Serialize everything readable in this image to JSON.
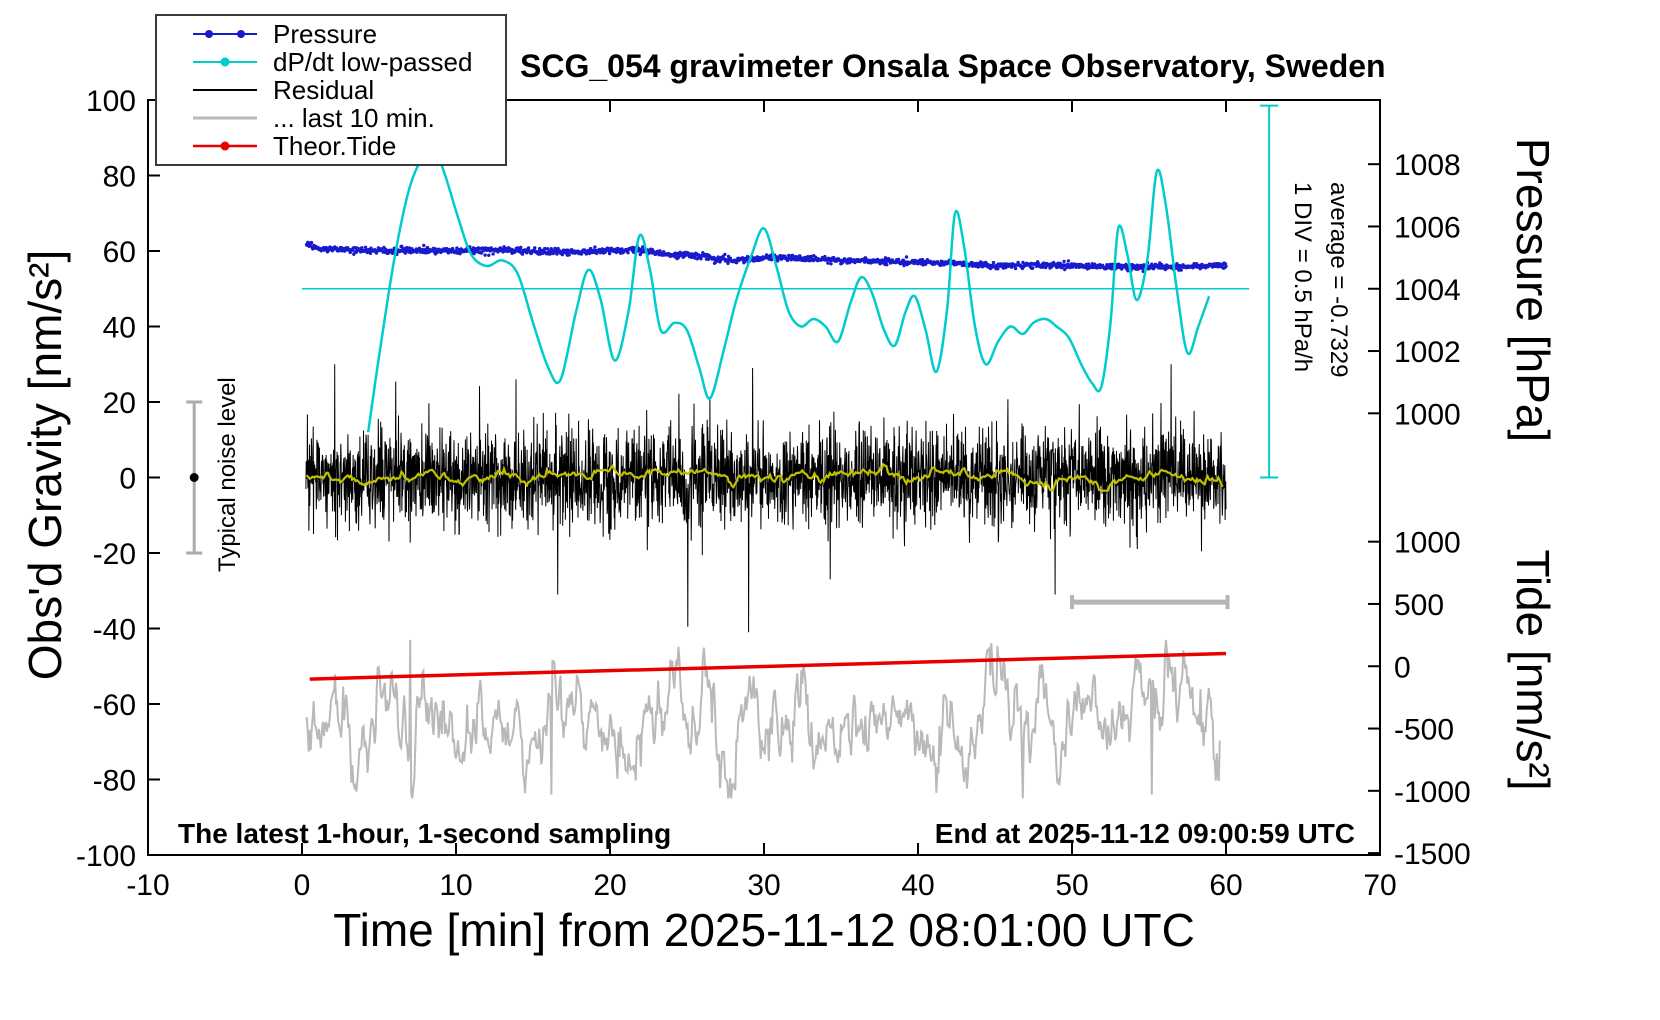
{
  "chart_data": {
    "type": "line",
    "title": "SCG_054 gravimeter Onsala Space Observatory, Sweden",
    "xlabel": "Time [min] from 2025-11-12 08:01:00 UTC",
    "ylabel": "Obs'd Gravity [nm/s²]",
    "xlim": [
      -10,
      70
    ],
    "ylim": [
      -100,
      100
    ],
    "x_ticks": [
      -10,
      0,
      10,
      20,
      30,
      40,
      50,
      60,
      70
    ],
    "y_ticks": [
      -100,
      -80,
      -60,
      -40,
      -20,
      0,
      20,
      40,
      60,
      80,
      100
    ],
    "grid": false,
    "legend_position": "top-left",
    "legend": [
      {
        "label": "Pressure",
        "color": "#1a1acd",
        "marker": "dots",
        "line_width": 2
      },
      {
        "label": "dP/dt low-passed",
        "color": "#00cccc",
        "marker": "dot",
        "line_width": 2
      },
      {
        "label": "Residual",
        "color": "#000000",
        "marker": "none",
        "line_width": 2
      },
      {
        "label": "... last 10 min.",
        "color": "#b9b9b9",
        "marker": "none",
        "line_width": 3
      },
      {
        "label": "Theor.Tide",
        "color": "#e80000",
        "marker": "dot",
        "line_width": 2.5
      }
    ],
    "pressure_axis": {
      "label": "Pressure [hPa]",
      "ticks": [
        1008,
        1006,
        1004,
        1002,
        1000
      ],
      "anchor_hpa": 1004,
      "anchor_gravity": 50,
      "gravity_units_per_hpa": 8.25
    },
    "tide_axis": {
      "label": "Tide [nm/s²]",
      "ticks": [
        1000,
        500,
        0,
        -500,
        -1000,
        -1500
      ],
      "anchor_tide": 0,
      "anchor_gravity": -50,
      "gravity_units_per_tide_unit": 0.033
    },
    "series": {
      "pressure_hpa": {
        "name": "Pressure",
        "color": "#1a1acd",
        "style": "dots",
        "x_range": [
          0.3,
          60
        ],
        "samples": 1500,
        "noise_hpa": 0.05,
        "keypoints": [
          [
            0.3,
            1005.45
          ],
          [
            1,
            1005.33
          ],
          [
            2,
            1005.28
          ],
          [
            4,
            1005.23
          ],
          [
            6,
            1005.22
          ],
          [
            8,
            1005.24
          ],
          [
            10,
            1005.22
          ],
          [
            12,
            1005.25
          ],
          [
            14,
            1005.24
          ],
          [
            16,
            1005.19
          ],
          [
            18,
            1005.18
          ],
          [
            20,
            1005.22
          ],
          [
            22,
            1005.26
          ],
          [
            23,
            1005.14
          ],
          [
            24,
            1005.08
          ],
          [
            25,
            1005.1
          ],
          [
            26,
            1005.04
          ],
          [
            27,
            1004.95
          ],
          [
            28,
            1004.91
          ],
          [
            29,
            1004.97
          ],
          [
            30,
            1005.01
          ],
          [
            31,
            1005.02
          ],
          [
            32,
            1004.98
          ],
          [
            34,
            1004.93
          ],
          [
            36,
            1004.9
          ],
          [
            38,
            1004.88
          ],
          [
            40,
            1004.86
          ],
          [
            42,
            1004.82
          ],
          [
            44,
            1004.76
          ],
          [
            46,
            1004.74
          ],
          [
            48,
            1004.77
          ],
          [
            50,
            1004.74
          ],
          [
            52,
            1004.71
          ],
          [
            54,
            1004.72
          ],
          [
            56,
            1004.72
          ],
          [
            58,
            1004.71
          ],
          [
            60,
            1004.76
          ]
        ]
      },
      "dpdt": {
        "name": "dP/dt low-passed",
        "color": "#00cccc",
        "reference_line_gravity": 50,
        "reference_line_x": [
          0,
          61.5
        ],
        "scale_bar": {
          "x": 62.8,
          "g_top": 98.5,
          "g_bottom": 0
        },
        "keypoints_gravity": [
          [
            4.3,
            12
          ],
          [
            5,
            32
          ],
          [
            6,
            58
          ],
          [
            7,
            77
          ],
          [
            8,
            86
          ],
          [
            8.6,
            87
          ],
          [
            9.3,
            80
          ],
          [
            10.2,
            68
          ],
          [
            11,
            59
          ],
          [
            12,
            56
          ],
          [
            13,
            57.5
          ],
          [
            14,
            54
          ],
          [
            15,
            41
          ],
          [
            16,
            29
          ],
          [
            16.8,
            26
          ],
          [
            17.8,
            44
          ],
          [
            18.6,
            55
          ],
          [
            19.4,
            47
          ],
          [
            20.3,
            31
          ],
          [
            21.2,
            44
          ],
          [
            21.9,
            64
          ],
          [
            22.6,
            55
          ],
          [
            23.3,
            39
          ],
          [
            24.2,
            41
          ],
          [
            25,
            39
          ],
          [
            25.8,
            29
          ],
          [
            26.5,
            21
          ],
          [
            27.4,
            34
          ],
          [
            28.2,
            47
          ],
          [
            29.2,
            59
          ],
          [
            30,
            66
          ],
          [
            30.8,
            56
          ],
          [
            31.6,
            44
          ],
          [
            32.4,
            40
          ],
          [
            33.2,
            42
          ],
          [
            34,
            40
          ],
          [
            34.8,
            36
          ],
          [
            35.6,
            46
          ],
          [
            36.3,
            53
          ],
          [
            37,
            49
          ],
          [
            37.8,
            39
          ],
          [
            38.5,
            35
          ],
          [
            39.2,
            44
          ],
          [
            39.8,
            48
          ],
          [
            40.5,
            39
          ],
          [
            41.2,
            28
          ],
          [
            41.9,
            45
          ],
          [
            42.4,
            70
          ],
          [
            43,
            61
          ],
          [
            43.7,
            40
          ],
          [
            44.4,
            30
          ],
          [
            45.2,
            36
          ],
          [
            46,
            40
          ],
          [
            46.8,
            38
          ],
          [
            47.5,
            41
          ],
          [
            48.3,
            42
          ],
          [
            49,
            40
          ],
          [
            49.8,
            37
          ],
          [
            50.6,
            30
          ],
          [
            51.3,
            25
          ],
          [
            51.9,
            24
          ],
          [
            52.5,
            41
          ],
          [
            53,
            66
          ],
          [
            53.6,
            59
          ],
          [
            54.2,
            47
          ],
          [
            54.9,
            58
          ],
          [
            55.5,
            81
          ],
          [
            56.1,
            72
          ],
          [
            56.8,
            50
          ],
          [
            57.5,
            33
          ],
          [
            58.2,
            40
          ],
          [
            58.9,
            48
          ]
        ]
      },
      "residual": {
        "name": "Residual",
        "color": "#000000",
        "x_range": [
          0.25,
          60
        ],
        "samples": 3000,
        "sigma": 6.5,
        "spike_probability": 0.012,
        "spike_scale": 2.4,
        "clip": [
          -41,
          30
        ],
        "spikes": [
          [
            29,
            -41
          ],
          [
            29.25,
            29
          ],
          [
            16.6,
            -31
          ],
          [
            48.9,
            -31
          ],
          [
            13.9,
            26
          ],
          [
            34.3,
            -27
          ]
        ]
      },
      "residual_smoothed": {
        "name": "Residual low-passed",
        "color": "#c0c000",
        "x_range": [
          0.3,
          59.8
        ],
        "samples": 600,
        "ar": 0.9,
        "sigma": 0.55,
        "scale": 0.9,
        "clip": [
          -3.5,
          3.5
        ],
        "center": 0
      },
      "last10min": {
        "name": "... last 10 min.",
        "color": "#b9b9b9",
        "x_range": [
          0.3,
          59.6
        ],
        "samples": 900,
        "ar": 0.88,
        "sigma": 4.0,
        "scale": 1,
        "clip": [
          -20,
          22
        ],
        "center": -65,
        "spikes": [
          [
            7,
            -43
          ],
          [
            16.2,
            -84
          ],
          [
            46.8,
            -85
          ],
          [
            55.2,
            -84
          ]
        ]
      },
      "theor_tide": {
        "name": "Theor.Tide",
        "color": "#e80000",
        "keypoints_tide": [
          [
            0.5,
            -103
          ],
          [
            15,
            -52
          ],
          [
            30,
            -2
          ],
          [
            45,
            50
          ],
          [
            60,
            102
          ]
        ]
      }
    },
    "markers": {
      "noise_bar": {
        "x": -7,
        "gravity_range": [
          -20,
          20
        ],
        "color": "#ababab",
        "dot_color": "#000000",
        "dot_gravity": 0
      },
      "length_bar": {
        "x_range": [
          50,
          60.1
        ],
        "gravity": -33,
        "color": "#b5b5b5"
      }
    },
    "annotations": {
      "div_scale": "1 DIV = 0.5 hPa/h",
      "average": "average = -0.7329",
      "noise_label": "Typical noise level",
      "sampling_note": "The latest 1-hour, 1-second sampling",
      "end_note": "End at 2025-11-12 09:00:59 UTC"
    }
  }
}
